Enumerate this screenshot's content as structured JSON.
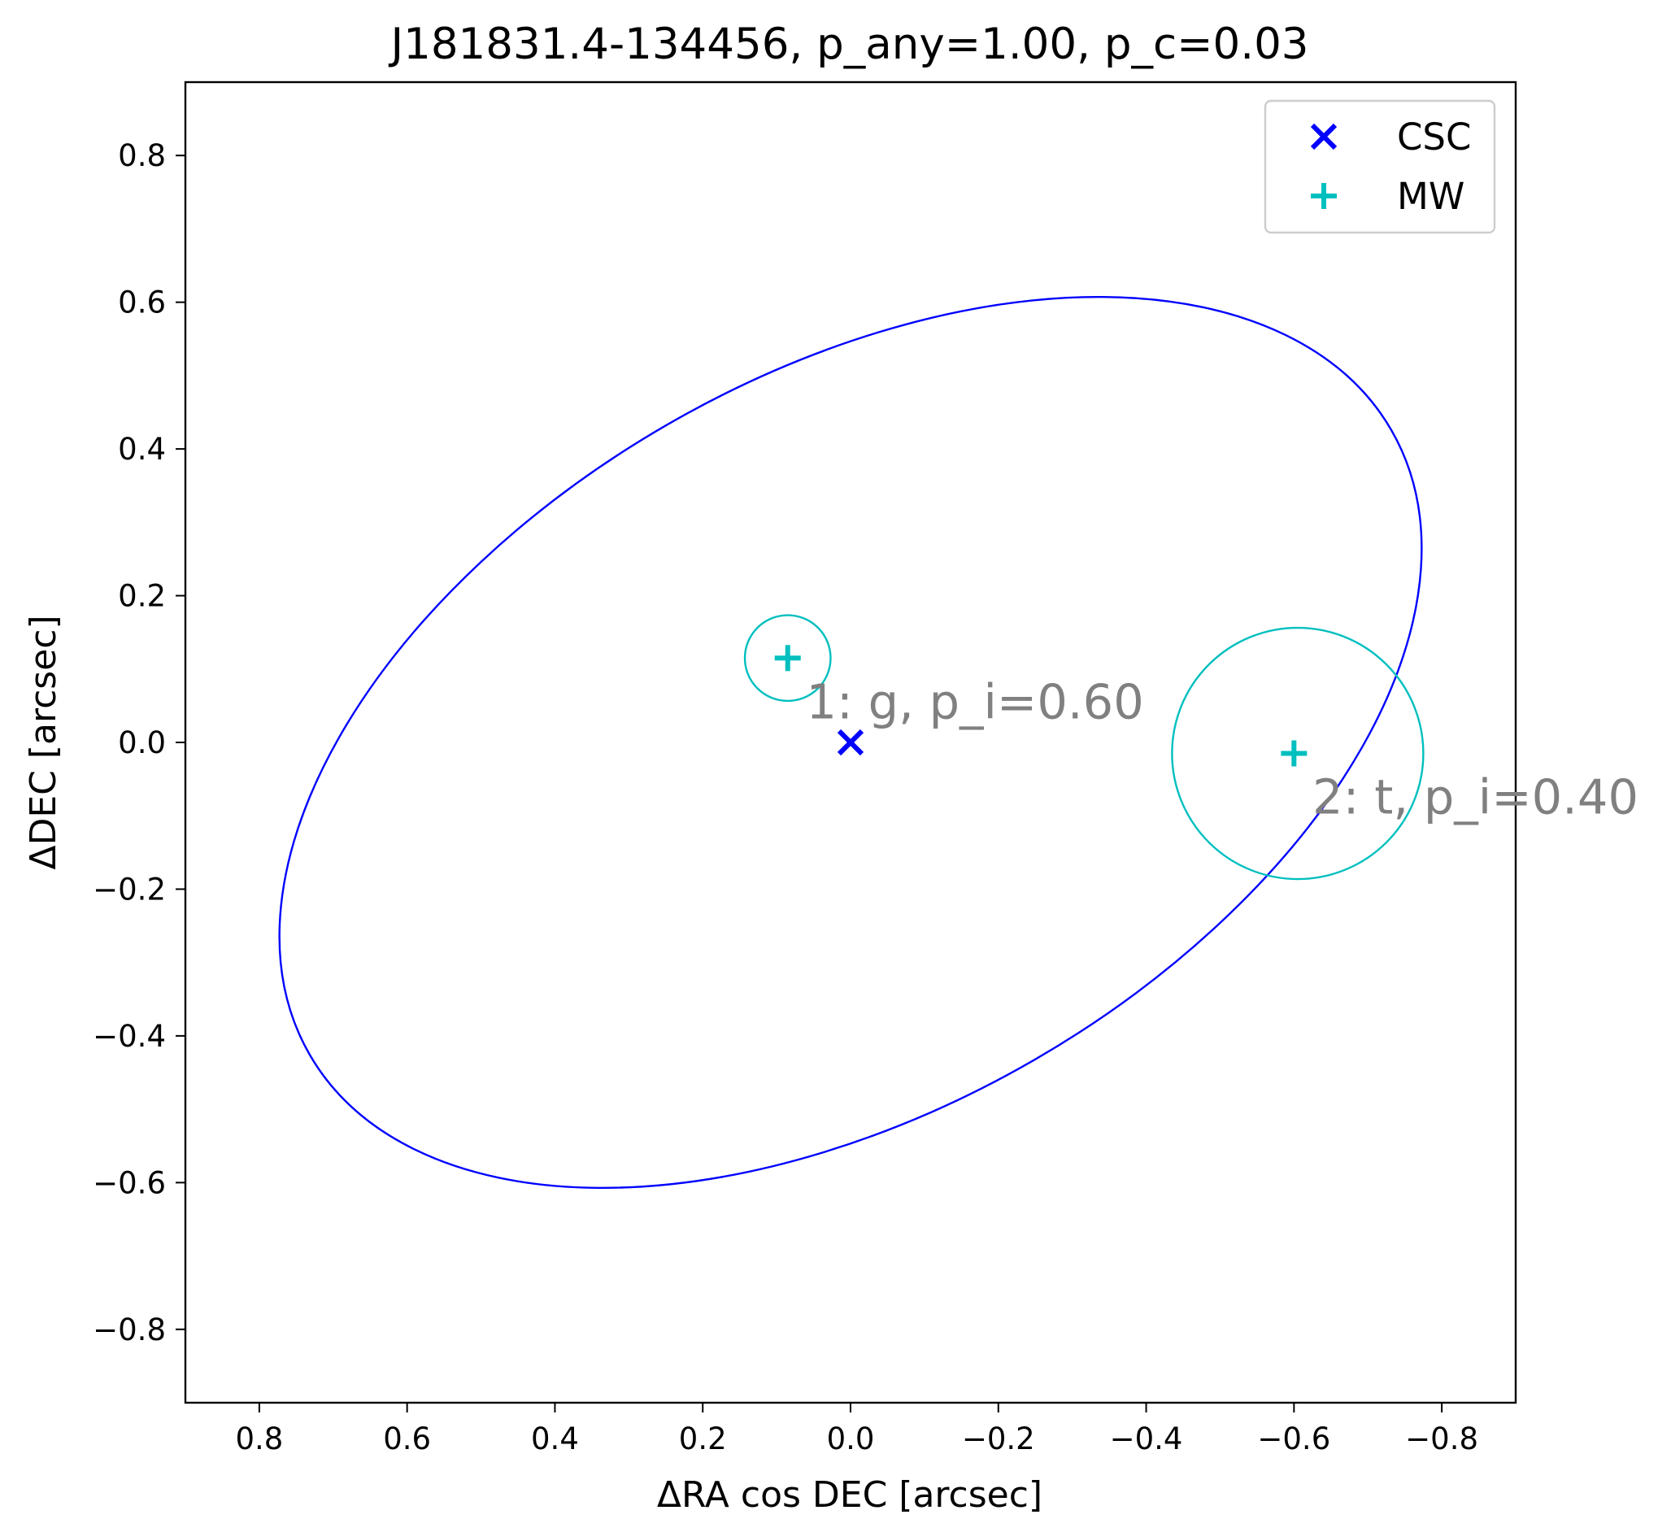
{
  "chart_data": {
    "type": "scatter",
    "title": "J181831.4-134456, p_any=1.00, p_c=0.03",
    "xlabel": "ΔRA cos DEC [arcsec]",
    "ylabel": "ΔDEC [arcsec]",
    "xlim": [
      0.9,
      -0.9
    ],
    "ylim": [
      -0.9,
      0.9
    ],
    "xticks": [
      0.8,
      0.6,
      0.4,
      0.2,
      0.0,
      -0.2,
      -0.4,
      -0.6,
      -0.8
    ],
    "xtick_labels": [
      "0.8",
      "0.6",
      "0.4",
      "0.2",
      "0.0",
      "−0.2",
      "−0.4",
      "−0.6",
      "−0.8"
    ],
    "yticks": [
      0.8,
      0.6,
      0.4,
      0.2,
      0.0,
      -0.2,
      -0.4,
      -0.6,
      -0.8
    ],
    "ytick_labels": [
      "0.8",
      "0.6",
      "0.4",
      "0.2",
      "0.0",
      "−0.2",
      "−0.4",
      "−0.6",
      "−0.8"
    ],
    "legend_position": "top-right",
    "series": [
      {
        "name": "CSC",
        "marker": "x",
        "color": "#0000ff",
        "points": [
          {
            "x": 0.0,
            "y": 0.0
          }
        ]
      },
      {
        "name": "MW",
        "marker": "+",
        "color": "#00bfbf",
        "points": [
          {
            "x": 0.085,
            "y": 0.115
          },
          {
            "x": -0.6,
            "y": -0.015
          }
        ]
      }
    ],
    "error_ellipses": [
      {
        "series": "CSC",
        "color": "#0000ff",
        "cx": 0.0,
        "cy": 0.0,
        "a": 0.845,
        "b": 0.5,
        "angle_deg": 30
      }
    ],
    "error_circles": [
      {
        "series": "MW",
        "color": "#00bfbf",
        "cx": 0.085,
        "cy": 0.115,
        "r": 0.058
      },
      {
        "series": "MW",
        "color": "#00bfbf",
        "cx": -0.605,
        "cy": -0.015,
        "r": 0.17
      }
    ],
    "annotations": [
      {
        "text": "1: g, p_i=0.60",
        "x": 0.06,
        "y": 0.055
      },
      {
        "text": "2: t, p_i=0.40",
        "x": -0.625,
        "y": -0.075
      }
    ]
  }
}
